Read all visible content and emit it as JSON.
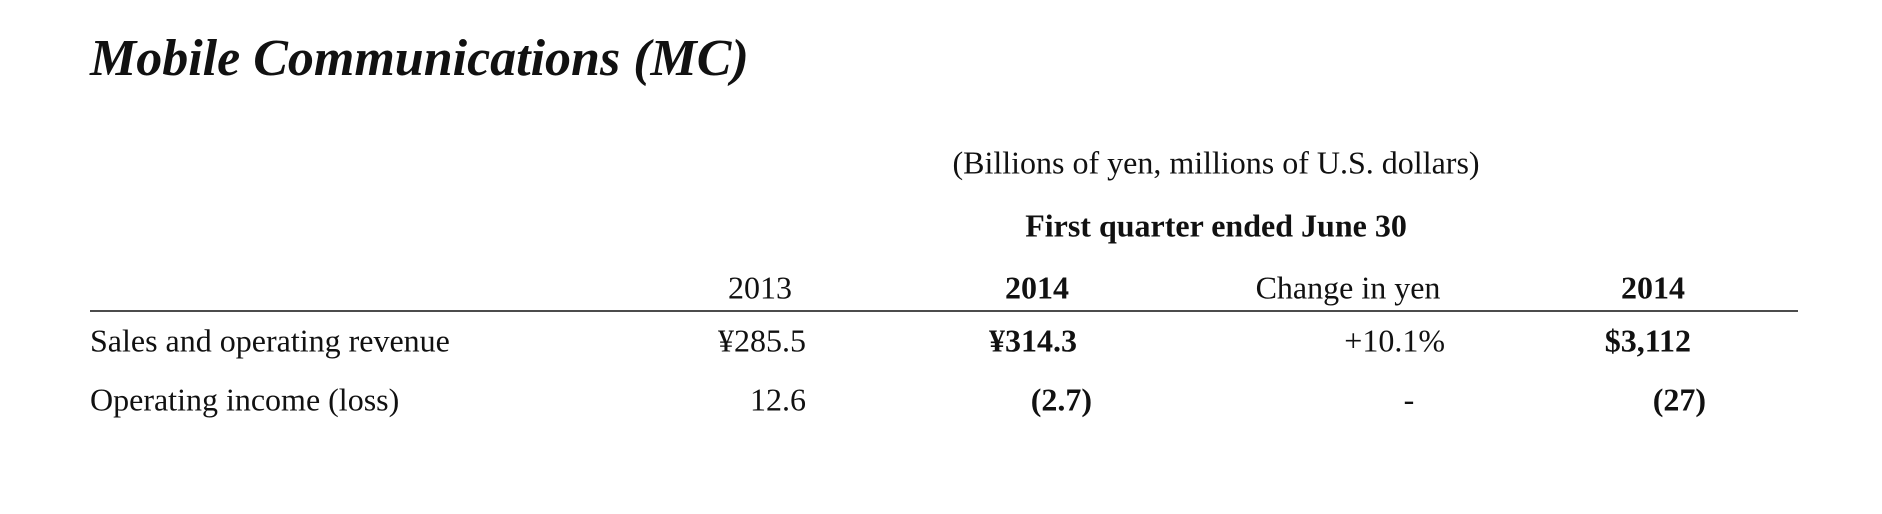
{
  "header": {
    "title": "Mobile Communications (MC)"
  },
  "table": {
    "note": "(Billions of yen, millions of U.S. dollars)",
    "period": "First quarter ended June 30",
    "columns": [
      "2013",
      "2014",
      "Change in yen",
      "2014"
    ],
    "rows": [
      {
        "label": "Sales and operating revenue",
        "values": [
          "¥285.5",
          "¥314.3",
          "+10.1%",
          "$3,112"
        ]
      },
      {
        "label": "Operating income (loss)",
        "values": [
          "12.6",
          "(2.7)",
          "-",
          "(27)"
        ]
      }
    ]
  }
}
